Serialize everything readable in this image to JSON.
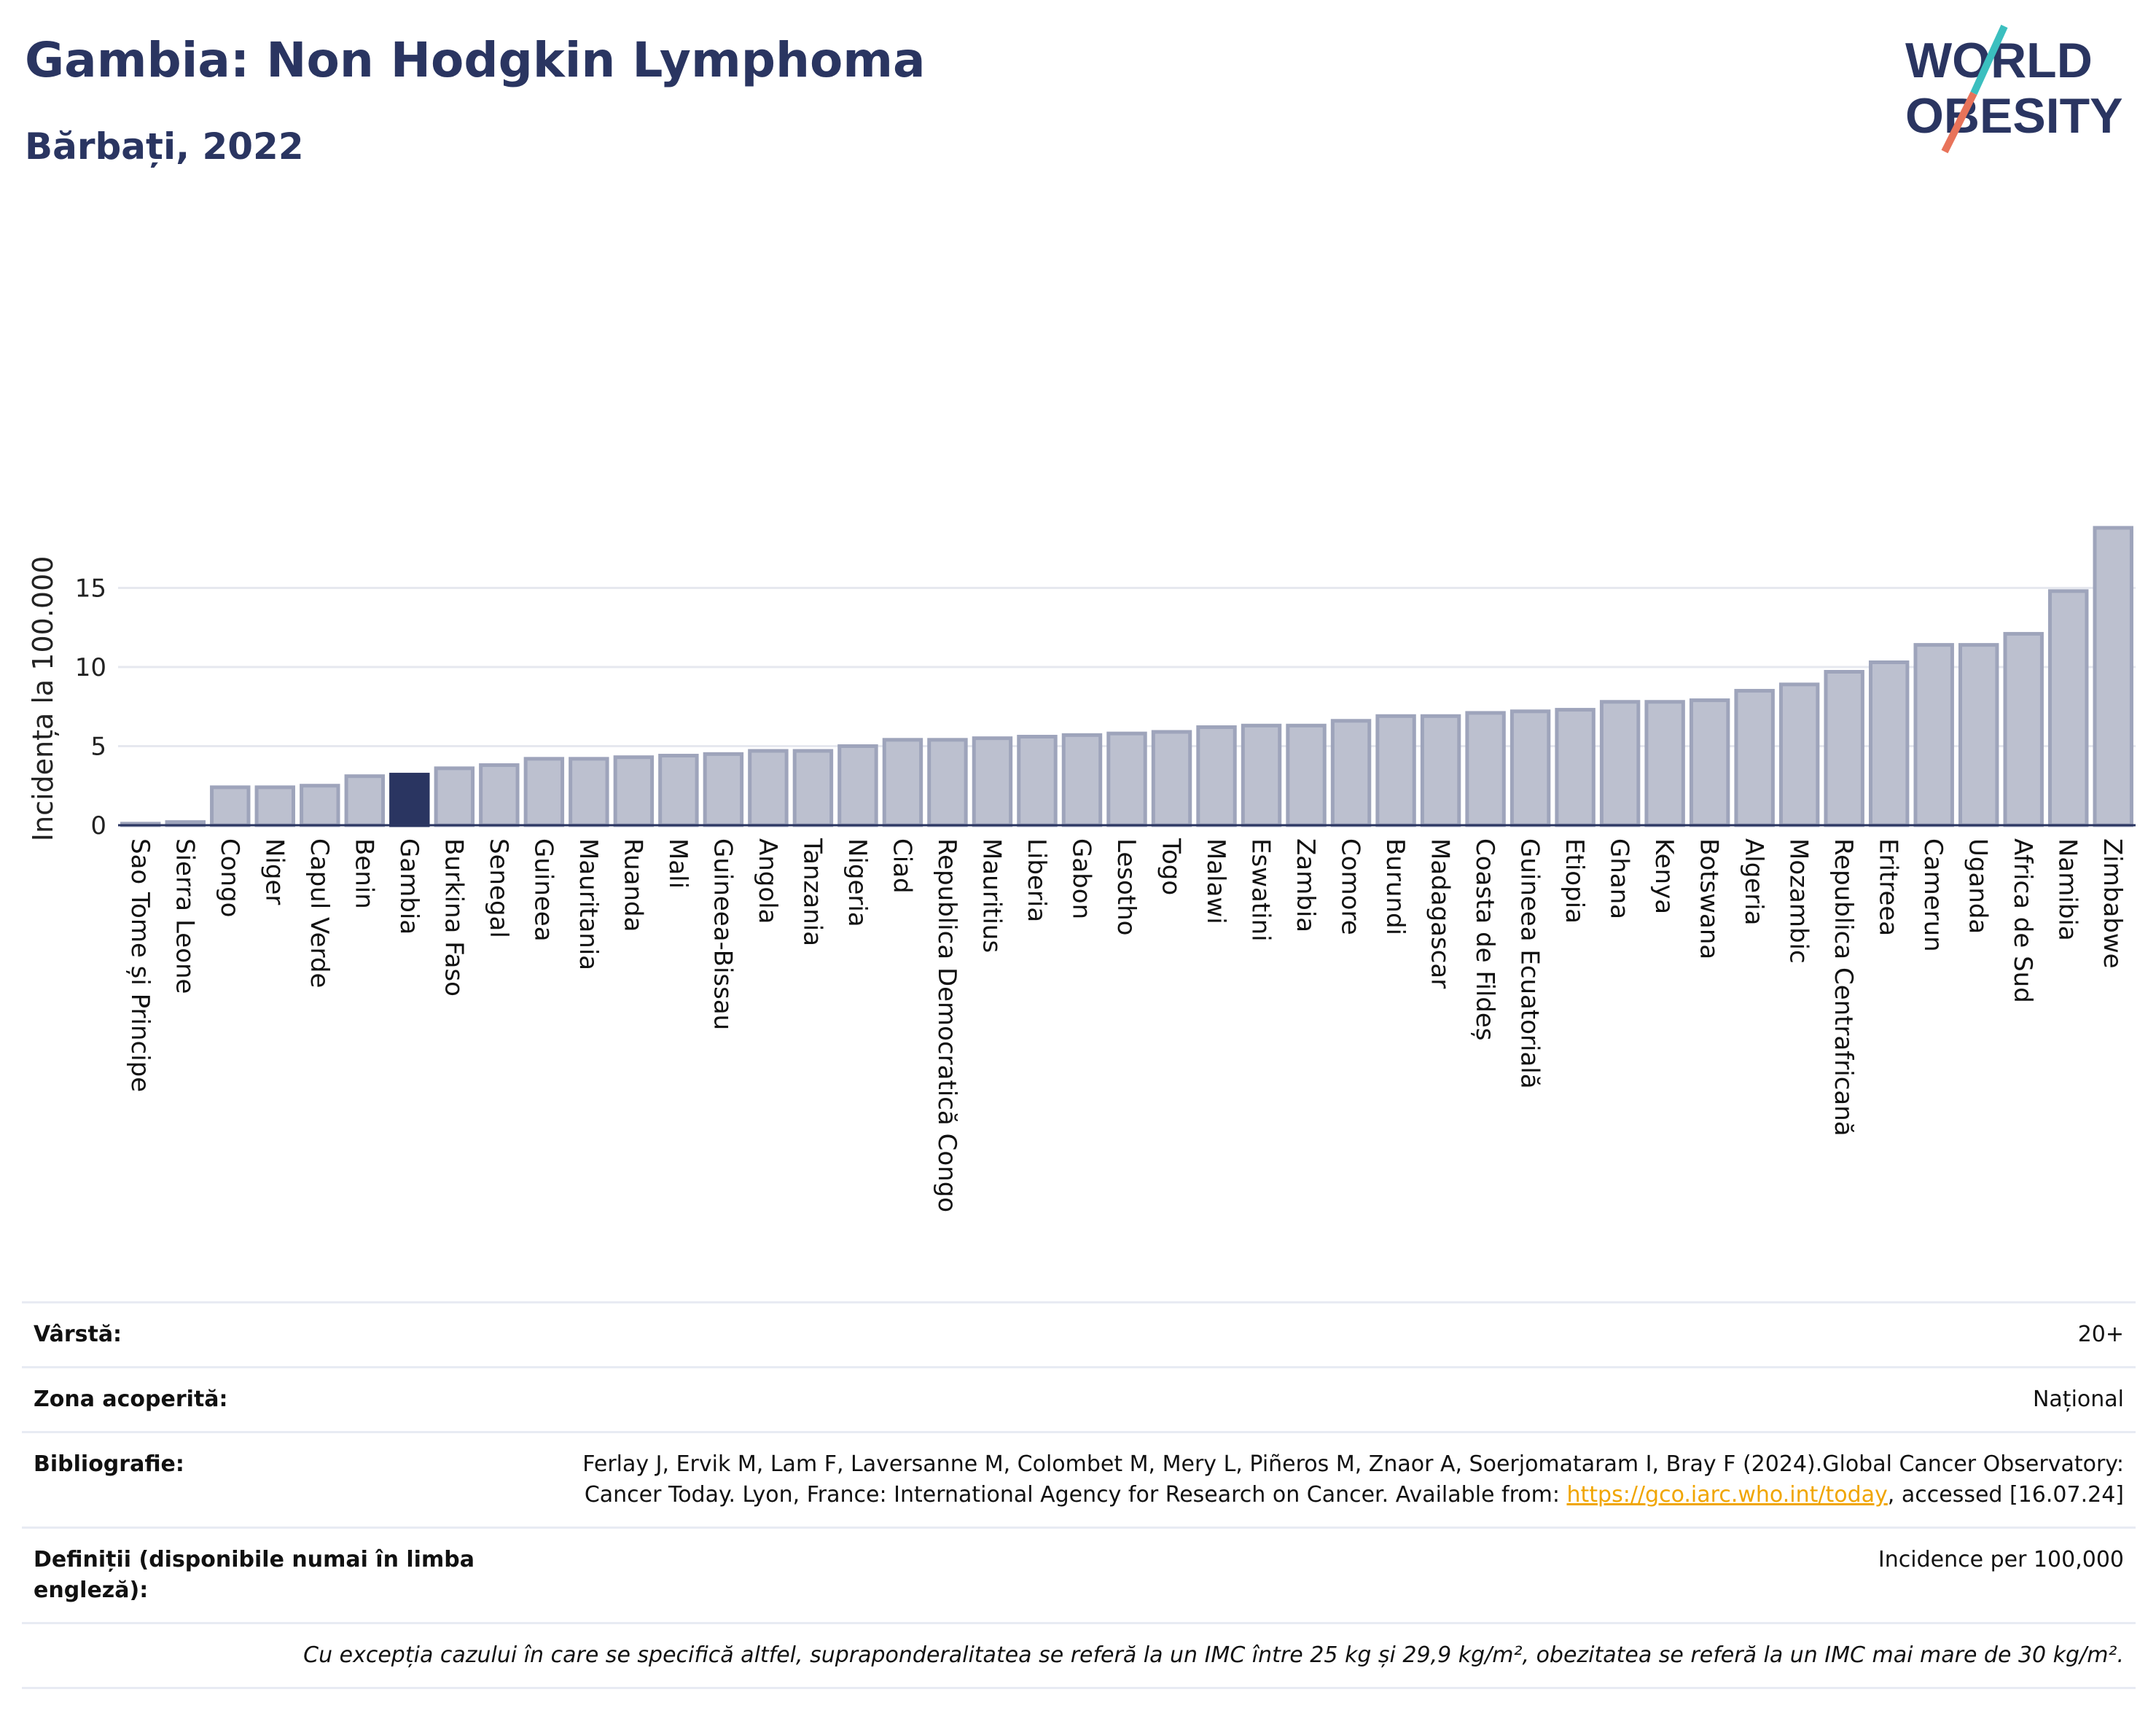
{
  "header": {
    "title": "Gambia: Non Hodgkin Lymphoma",
    "subtitle": "Bărbați, 2022",
    "logo_line1": "WORLD",
    "logo_line2": "OBESITY"
  },
  "colors": {
    "bar": "#bcc0cf",
    "bar_stroke": "#9ea4bb",
    "highlight": "#2a3561",
    "grid": "#e6e8ef",
    "title": "#2a3561",
    "logo_slash_teal": "#3bbfbf",
    "logo_slash_coral": "#e8735a",
    "link": "#f0a500"
  },
  "chart_data": {
    "type": "bar",
    "ylabel": "Incidența la 100.000",
    "ylim": [
      0,
      19.5
    ],
    "yticks": [
      0,
      5,
      10,
      15
    ],
    "grid": true,
    "highlight": "Gambia",
    "categories": [
      "Sao Tome și Principe",
      "Sierra Leone",
      "Congo",
      "Niger",
      "Capul Verde",
      "Benin",
      "Gambia",
      "Burkina Faso",
      "Senegal",
      "Guineea",
      "Mauritania",
      "Ruanda",
      "Mali",
      "Guineea-Bissau",
      "Angola",
      "Tanzania",
      "Nigeria",
      "Ciad",
      "Republica Democratică Congo",
      "Mauritius",
      "Liberia",
      "Gabon",
      "Lesotho",
      "Togo",
      "Malawi",
      "Eswatini",
      "Zambia",
      "Comore",
      "Burundi",
      "Madagascar",
      "Coasta de Fildeș",
      "Guineea Ecuatorială",
      "Etiopia",
      "Ghana",
      "Kenya",
      "Botswana",
      "Algeria",
      "Mozambic",
      "Republica Centrafricană",
      "Eritreea",
      "Camerun",
      "Uganda",
      "Africa de Sud",
      "Namibia",
      "Zimbabwe"
    ],
    "values": [
      0.1,
      0.2,
      2.4,
      2.4,
      2.5,
      3.1,
      3.2,
      3.6,
      3.8,
      4.2,
      4.2,
      4.3,
      4.4,
      4.5,
      4.7,
      4.7,
      5.0,
      5.4,
      5.4,
      5.5,
      5.6,
      5.7,
      5.8,
      5.9,
      6.2,
      6.3,
      6.3,
      6.6,
      6.9,
      6.9,
      7.1,
      7.2,
      7.3,
      7.8,
      7.8,
      7.9,
      8.5,
      8.9,
      9.7,
      10.3,
      11.4,
      11.4,
      12.1,
      14.8,
      18.8
    ]
  },
  "info": {
    "age_label": "Vârstă:",
    "age_value": "20+",
    "coverage_label": "Zona acoperită:",
    "coverage_value": "Național",
    "biblio_label": "Bibliografie:",
    "biblio_text": "Ferlay J, Ervik M, Lam F, Laversanne M, Colombet M, Mery L, Piñeros M, Znaor A, Soerjomataram I, Bray F (2024).Global Cancer Observatory: Cancer Today. Lyon, France: International Agency for Research on Cancer. Available from:",
    "biblio_link": "https://gco.iarc.who.int/today",
    "biblio_after": ", accessed [16.07.24]",
    "def_label": "Definiții (disponibile numai în limba engleză):",
    "def_value": "Incidence per 100,000",
    "note": "Cu excepția cazului în care se specifică altfel, supraponderalitatea se referă la un IMC între 25 kg și 29,9 kg/m², obezitatea se referă la un IMC mai mare de 30 kg/m²."
  }
}
